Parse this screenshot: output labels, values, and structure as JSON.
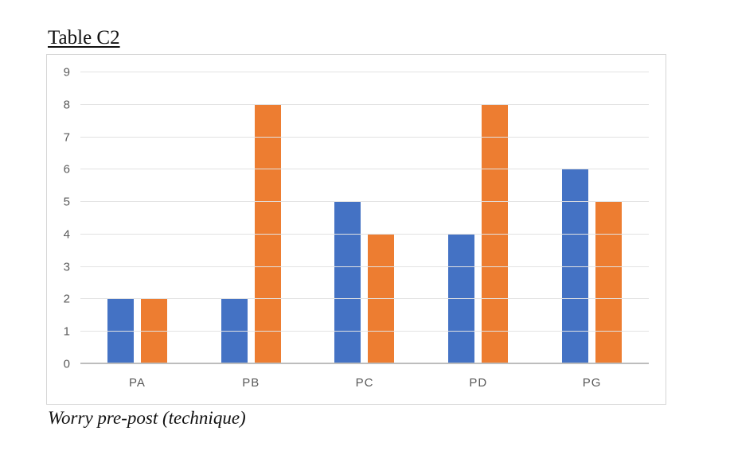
{
  "chart_data": {
    "type": "bar",
    "title": "Table C2",
    "caption": "Worry pre-post (technique)",
    "categories": [
      "PA",
      "PB",
      "PC",
      "PD",
      "PG"
    ],
    "series": [
      {
        "name": "series-1",
        "color": "#4472C4",
        "values": [
          2,
          2,
          5,
          4,
          6
        ]
      },
      {
        "name": "series-2",
        "color": "#ED7D31",
        "values": [
          2,
          8,
          4,
          8,
          5
        ]
      }
    ],
    "ylim": [
      0,
      9
    ],
    "ytick_interval": 1,
    "yticks": [
      0,
      1,
      2,
      3,
      4,
      5,
      6,
      7,
      8,
      9
    ],
    "grid": true,
    "legend": "none"
  }
}
